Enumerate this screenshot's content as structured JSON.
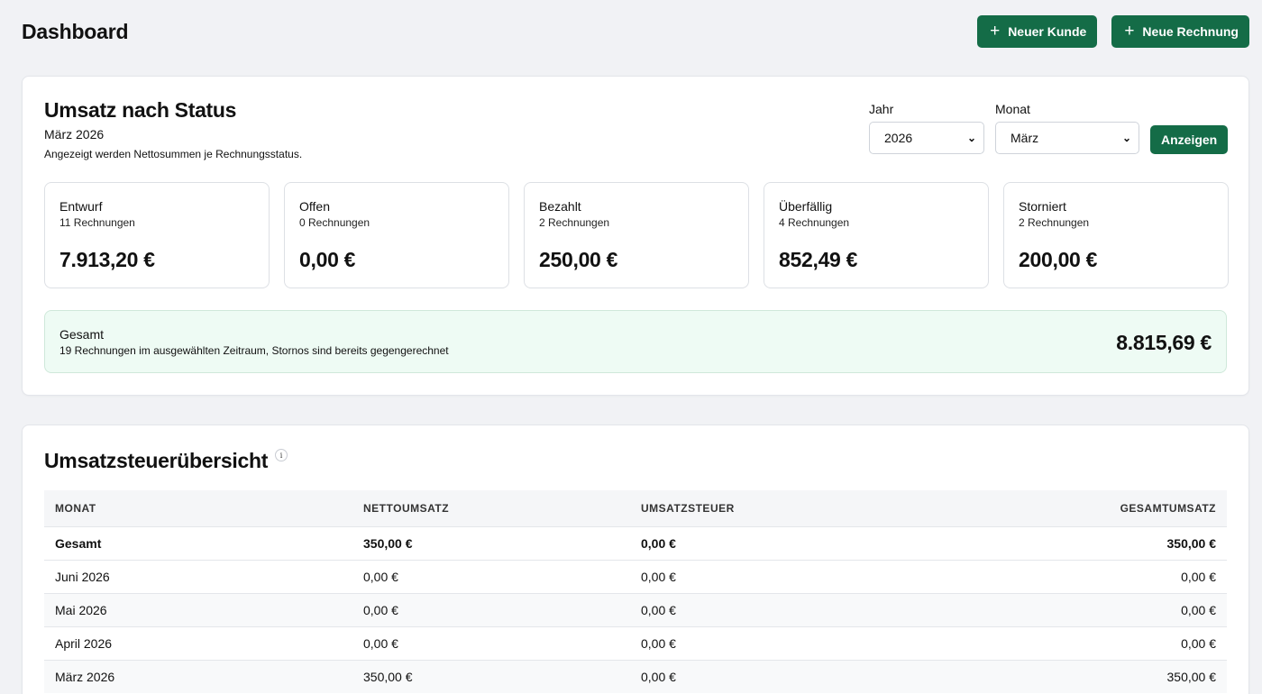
{
  "header": {
    "title": "Dashboard",
    "new_customer_label": "Neuer Kunde",
    "new_invoice_label": "Neue Rechnung"
  },
  "status_card": {
    "title": "Umsatz nach Status",
    "period": "März 2026",
    "description": "Angezeigt werden Nettosummen je Rechnungsstatus.",
    "filters": {
      "year_label": "Jahr",
      "year_value": "2026",
      "month_label": "Monat",
      "month_value": "März",
      "submit_label": "Anzeigen"
    },
    "stats": [
      {
        "name": "Entwurf",
        "count": "11 Rechnungen",
        "amount": "7.913,20 €"
      },
      {
        "name": "Offen",
        "count": "0 Rechnungen",
        "amount": "0,00 €"
      },
      {
        "name": "Bezahlt",
        "count": "2 Rechnungen",
        "amount": "250,00 €"
      },
      {
        "name": "Überfällig",
        "count": "4 Rechnungen",
        "amount": "852,49 €"
      },
      {
        "name": "Storniert",
        "count": "2 Rechnungen",
        "amount": "200,00 €"
      }
    ],
    "total": {
      "label": "Gesamt",
      "subtitle": "19 Rechnungen im ausgewählten Zeitraum, Stornos sind bereits gegengerechnet",
      "amount": "8.815,69 €"
    }
  },
  "tax_card": {
    "title": "Umsatzsteuerübersicht",
    "info_symbol": "i",
    "columns": [
      "MONAT",
      "NETTOUMSATZ",
      "UMSATZSTEUER",
      "GESAMTUMSATZ"
    ],
    "rows": [
      {
        "month": "Gesamt",
        "net": "350,00 €",
        "tax": "0,00 €",
        "gross": "350,00 €"
      },
      {
        "month": "Juni 2026",
        "net": "0,00 €",
        "tax": "0,00 €",
        "gross": "0,00 €"
      },
      {
        "month": "Mai 2026",
        "net": "0,00 €",
        "tax": "0,00 €",
        "gross": "0,00 €"
      },
      {
        "month": "April 2026",
        "net": "0,00 €",
        "tax": "0,00 €",
        "gross": "0,00 €"
      },
      {
        "month": "März 2026",
        "net": "350,00 €",
        "tax": "0,00 €",
        "gross": "350,00 €"
      }
    ]
  },
  "colors": {
    "primary": "#146c47",
    "background": "#f1f2f5",
    "total_bg": "#eefbf4"
  }
}
